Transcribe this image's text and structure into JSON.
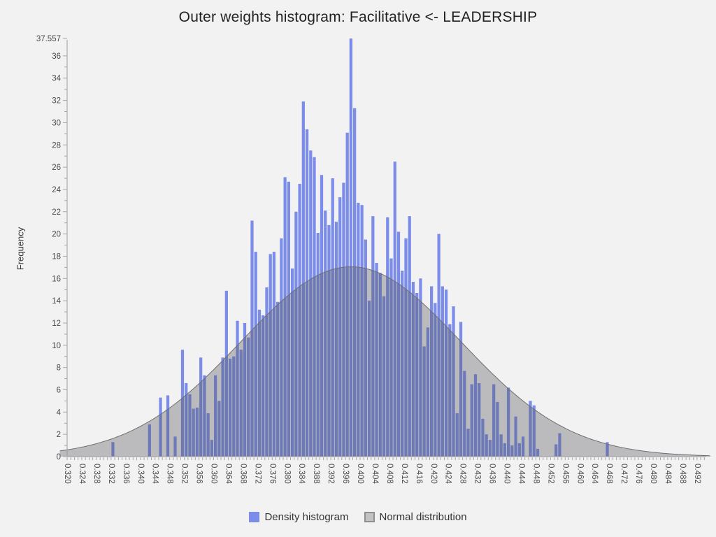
{
  "chart_data": {
    "type": "bar",
    "subtype": "density-histogram-with-normal-curve",
    "title": "Outer weights histogram: Facilitative <- LEADERSHIP",
    "xlabel": "",
    "ylabel": "Frequency",
    "x_axis": {
      "min": 0.32,
      "max": 0.494,
      "minor_tick_step": 0.001,
      "label_step": 0.004,
      "tick_labels": [
        "0.320",
        "0.324",
        "0.328",
        "0.332",
        "0.336",
        "0.340",
        "0.344",
        "0.348",
        "0.352",
        "0.356",
        "0.360",
        "0.364",
        "0.368",
        "0.372",
        "0.376",
        "0.380",
        "0.384",
        "0.388",
        "0.392",
        "0.396",
        "0.400",
        "0.404",
        "0.408",
        "0.412",
        "0.416",
        "0.420",
        "0.424",
        "0.428",
        "0.432",
        "0.436",
        "0.440",
        "0.444",
        "0.448",
        "0.452",
        "0.456",
        "0.460",
        "0.464",
        "0.468",
        "0.472",
        "0.476",
        "0.480",
        "0.484",
        "0.488",
        "0.492"
      ]
    },
    "y_axis": {
      "min": 0,
      "max": 37.557,
      "tick_labels": [
        "0",
        "2",
        "4",
        "6",
        "8",
        "10",
        "12",
        "14",
        "16",
        "18",
        "20",
        "22",
        "24",
        "26",
        "28",
        "30",
        "32",
        "34",
        "36",
        "37.557"
      ],
      "minor_tick_step": 1
    },
    "bin_width": 0.001,
    "bins": [
      [
        0.332,
        1.3
      ],
      [
        0.342,
        2.9
      ],
      [
        0.345,
        5.3
      ],
      [
        0.347,
        5.5
      ],
      [
        0.349,
        1.8
      ],
      [
        0.351,
        9.6
      ],
      [
        0.352,
        6.6
      ],
      [
        0.353,
        5.6
      ],
      [
        0.354,
        4.3
      ],
      [
        0.355,
        4.4
      ],
      [
        0.356,
        8.9
      ],
      [
        0.357,
        7.3
      ],
      [
        0.358,
        3.9
      ],
      [
        0.359,
        1.5
      ],
      [
        0.36,
        7.3
      ],
      [
        0.361,
        5.0
      ],
      [
        0.362,
        8.9
      ],
      [
        0.363,
        14.9
      ],
      [
        0.364,
        8.8
      ],
      [
        0.365,
        9.0
      ],
      [
        0.366,
        12.2
      ],
      [
        0.367,
        9.6
      ],
      [
        0.368,
        12.0
      ],
      [
        0.369,
        10.7
      ],
      [
        0.37,
        21.2
      ],
      [
        0.371,
        18.4
      ],
      [
        0.372,
        13.2
      ],
      [
        0.373,
        12.7
      ],
      [
        0.374,
        15.2
      ],
      [
        0.375,
        18.2
      ],
      [
        0.376,
        18.4
      ],
      [
        0.377,
        13.9
      ],
      [
        0.378,
        19.6
      ],
      [
        0.379,
        25.1
      ],
      [
        0.38,
        24.7
      ],
      [
        0.381,
        16.9
      ],
      [
        0.382,
        22.0
      ],
      [
        0.383,
        24.5
      ],
      [
        0.384,
        31.9
      ],
      [
        0.385,
        29.4
      ],
      [
        0.386,
        27.5
      ],
      [
        0.387,
        26.9
      ],
      [
        0.388,
        20.1
      ],
      [
        0.389,
        25.3
      ],
      [
        0.39,
        22.1
      ],
      [
        0.391,
        20.8
      ],
      [
        0.392,
        25.0
      ],
      [
        0.393,
        21.1
      ],
      [
        0.394,
        23.3
      ],
      [
        0.395,
        24.6
      ],
      [
        0.396,
        29.1
      ],
      [
        0.397,
        37.557
      ],
      [
        0.398,
        31.3
      ],
      [
        0.399,
        22.8
      ],
      [
        0.4,
        22.6
      ],
      [
        0.401,
        19.5
      ],
      [
        0.402,
        14.0
      ],
      [
        0.403,
        21.6
      ],
      [
        0.404,
        17.4
      ],
      [
        0.405,
        16.5
      ],
      [
        0.406,
        14.4
      ],
      [
        0.407,
        21.5
      ],
      [
        0.408,
        17.8
      ],
      [
        0.409,
        26.5
      ],
      [
        0.41,
        20.2
      ],
      [
        0.411,
        16.7
      ],
      [
        0.412,
        19.6
      ],
      [
        0.413,
        21.6
      ],
      [
        0.414,
        15.7
      ],
      [
        0.415,
        14.7
      ],
      [
        0.416,
        16.0
      ],
      [
        0.417,
        9.9
      ],
      [
        0.418,
        11.6
      ],
      [
        0.419,
        15.3
      ],
      [
        0.42,
        13.8
      ],
      [
        0.421,
        20.0
      ],
      [
        0.422,
        15.3
      ],
      [
        0.423,
        15.0
      ],
      [
        0.424,
        11.9
      ],
      [
        0.425,
        13.5
      ],
      [
        0.426,
        3.9
      ],
      [
        0.427,
        12.1
      ],
      [
        0.428,
        7.7
      ],
      [
        0.429,
        2.5
      ],
      [
        0.43,
        6.5
      ],
      [
        0.431,
        7.4
      ],
      [
        0.432,
        6.6
      ],
      [
        0.433,
        3.4
      ],
      [
        0.434,
        2.0
      ],
      [
        0.435,
        1.5
      ],
      [
        0.436,
        6.5
      ],
      [
        0.437,
        4.9
      ],
      [
        0.438,
        2.0
      ],
      [
        0.439,
        1.2
      ],
      [
        0.44,
        6.2
      ],
      [
        0.441,
        1.0
      ],
      [
        0.442,
        3.6
      ],
      [
        0.443,
        1.2
      ],
      [
        0.444,
        1.8
      ],
      [
        0.446,
        5.0
      ],
      [
        0.447,
        4.6
      ],
      [
        0.448,
        0.7
      ],
      [
        0.453,
        1.1
      ],
      [
        0.454,
        2.1
      ],
      [
        0.467,
        1.3
      ]
    ],
    "normal_curve": {
      "mean": 0.3975,
      "sigma": 0.03,
      "peak": 17.05
    },
    "legend": [
      {
        "label": "Density histogram",
        "color": "#7b8de8",
        "border": "#7b8de8"
      },
      {
        "label": "Normal distribution",
        "color": "#c2c2c4",
        "border": "#8f8f92"
      }
    ],
    "colors": {
      "bar": "#7b8de8",
      "curve_fill": "rgba(85,85,92,0.35)",
      "curve_line": "#6f6f73",
      "axis": "#9a9a9e",
      "tick": "#a7a7ab",
      "tick_label": "#4a4a4a",
      "title": "#222222",
      "background": "#f2f2f3"
    },
    "layout": {
      "grid": false,
      "legend_position": "bottom-center"
    }
  }
}
